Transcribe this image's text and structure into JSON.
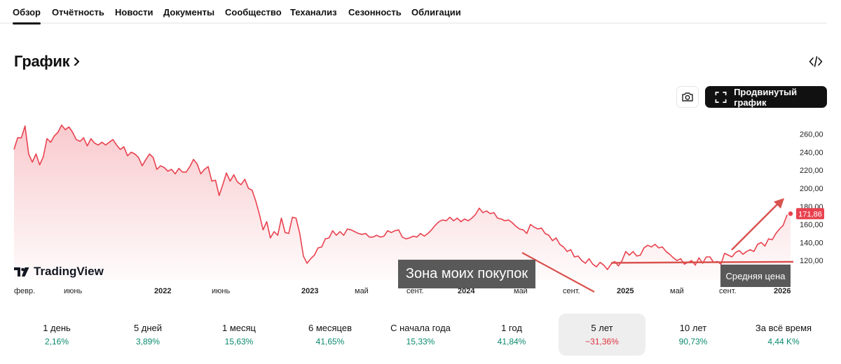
{
  "tabs": [
    {
      "label": "Обзор",
      "active": true
    },
    {
      "label": "Отчётность"
    },
    {
      "label": "Новости"
    },
    {
      "label": "Документы"
    },
    {
      "label": "Сообщество"
    },
    {
      "label": "Теханализ"
    },
    {
      "label": "Сезонность"
    },
    {
      "label": "Облигации"
    }
  ],
  "section": {
    "title": "График"
  },
  "toolbar": {
    "advanced_label": "Продвинутый график"
  },
  "chart": {
    "brand": "TradingView",
    "line_color": "#e8424f",
    "y_ticks": [
      "260,00",
      "240,00",
      "220,00",
      "200,00",
      "180,00",
      "160,00",
      "140,00",
      "120,00"
    ],
    "x_ticks": [
      "февр.",
      "июнь",
      "2022",
      "июнь",
      "2023",
      "май",
      "сент.",
      "2024",
      "май",
      "сент.",
      "2025",
      "май",
      "сент.",
      "2026"
    ],
    "last_price": "171,86"
  },
  "annotations": {
    "zone_text": "Зона моих покупок",
    "avg_text": "Средняя цена",
    "color": "#d9534f"
  },
  "chart_data": {
    "type": "area",
    "x_range": [
      "2021-02",
      "2026-01"
    ],
    "ylim": [
      105,
      275
    ],
    "last_value": 171.86,
    "series": [
      {
        "values": [
          243,
          256,
          256,
          269,
          238,
          229,
          238,
          226,
          235,
          255,
          251,
          258,
          262,
          270,
          265,
          268,
          262,
          254,
          252,
          256,
          247,
          255,
          250,
          248,
          251,
          248,
          251,
          254,
          248,
          243,
          246,
          236,
          240,
          238,
          234,
          225,
          232,
          238,
          234,
          221,
          225,
          223,
          219,
          221,
          216,
          222,
          218,
          218,
          224,
          232,
          227,
          216,
          221,
          224,
          208,
          209,
          192,
          204,
          217,
          208,
          215,
          207,
          204,
          210,
          200,
          198,
          186,
          171,
          154,
          163,
          145,
          152,
          148,
          167,
          151,
          150,
          168,
          167,
          150,
          125,
          117,
          122,
          126,
          134,
          135,
          144,
          145,
          153,
          148,
          152,
          148,
          155,
          154,
          152,
          150,
          149,
          150,
          146,
          146,
          148,
          146,
          147,
          153,
          151,
          153,
          154,
          146,
          144,
          145,
          147,
          146,
          150,
          147,
          150,
          154,
          159,
          163,
          165,
          164,
          168,
          164,
          167,
          163,
          166,
          164,
          167,
          171,
          178,
          173,
          175,
          172,
          173,
          167,
          166,
          164,
          165,
          162,
          158,
          155,
          154,
          150,
          160,
          157,
          155,
          156,
          150,
          148,
          142,
          145,
          138,
          135,
          130,
          132,
          124,
          125,
          120,
          117,
          122,
          116,
          113,
          118,
          115,
          110,
          116,
          119,
          114,
          120,
          130,
          126,
          130,
          125,
          126,
          134,
          137,
          135,
          138,
          134,
          135,
          130,
          127,
          123,
          120,
          122,
          116,
          118,
          120,
          115,
          123,
          117,
          124,
          124,
          118,
          119,
          116,
          128,
          126,
          124,
          129,
          131,
          127,
          130,
          132,
          130,
          138,
          140,
          136,
          144,
          143,
          150,
          155,
          159,
          170,
          171.86
        ]
      }
    ]
  },
  "periods": [
    {
      "label": "1 день",
      "value": "2,16%",
      "trend": "pos"
    },
    {
      "label": "5 дней",
      "value": "3,89%",
      "trend": "pos"
    },
    {
      "label": "1 месяц",
      "value": "15,63%",
      "trend": "pos"
    },
    {
      "label": "6 месяцев",
      "value": "41,65%",
      "trend": "pos"
    },
    {
      "label": "С начала года",
      "value": "15,33%",
      "trend": "pos"
    },
    {
      "label": "1 год",
      "value": "41,84%",
      "trend": "pos"
    },
    {
      "label": "5 лет",
      "value": "−31,36%",
      "trend": "neg",
      "selected": true
    },
    {
      "label": "10 лет",
      "value": "90,73%",
      "trend": "pos"
    },
    {
      "label": "За всё время",
      "value": "4,44 K%",
      "trend": "pos"
    }
  ]
}
